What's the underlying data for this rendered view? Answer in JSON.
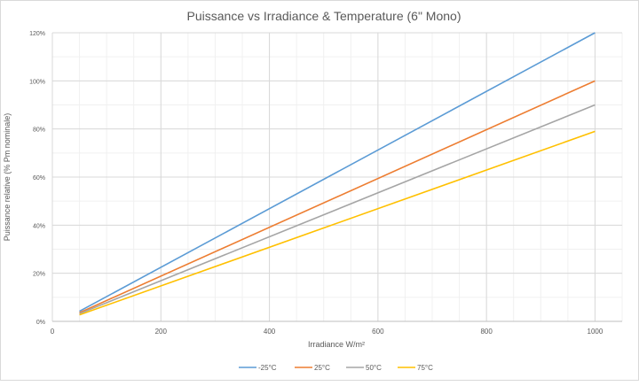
{
  "chart_data": {
    "type": "line",
    "title": "Puissance  vs Irradiance & Temperature (6\" Mono)",
    "xlabel": "Irradiance W/m²",
    "ylabel": "Puissance relative (% Pm nominale)",
    "xlim": [
      0,
      1050
    ],
    "ylim": [
      0,
      120
    ],
    "x_ticks": [
      0,
      200,
      400,
      600,
      800,
      1000
    ],
    "x_tick_labels": [
      "0",
      "200",
      "400",
      "600",
      "800",
      "1000"
    ],
    "y_ticks": [
      0,
      20,
      40,
      60,
      80,
      100,
      120
    ],
    "y_tick_labels": [
      "0%",
      "20%",
      "40%",
      "60%",
      "80%",
      "100%",
      "120%"
    ],
    "grid": "major and minor",
    "legend_position": "bottom",
    "x": [
      50,
      1000
    ],
    "series": [
      {
        "name": "-25°C",
        "color": "#5b9bd5",
        "values": [
          4.2,
          120
        ]
      },
      {
        "name": "25°C",
        "color": "#ed7d31",
        "values": [
          3.6,
          100
        ]
      },
      {
        "name": "50°C",
        "color": "#a5a5a5",
        "values": [
          3.2,
          90
        ]
      },
      {
        "name": "75°C",
        "color": "#ffc000",
        "values": [
          2.7,
          79
        ]
      }
    ]
  }
}
